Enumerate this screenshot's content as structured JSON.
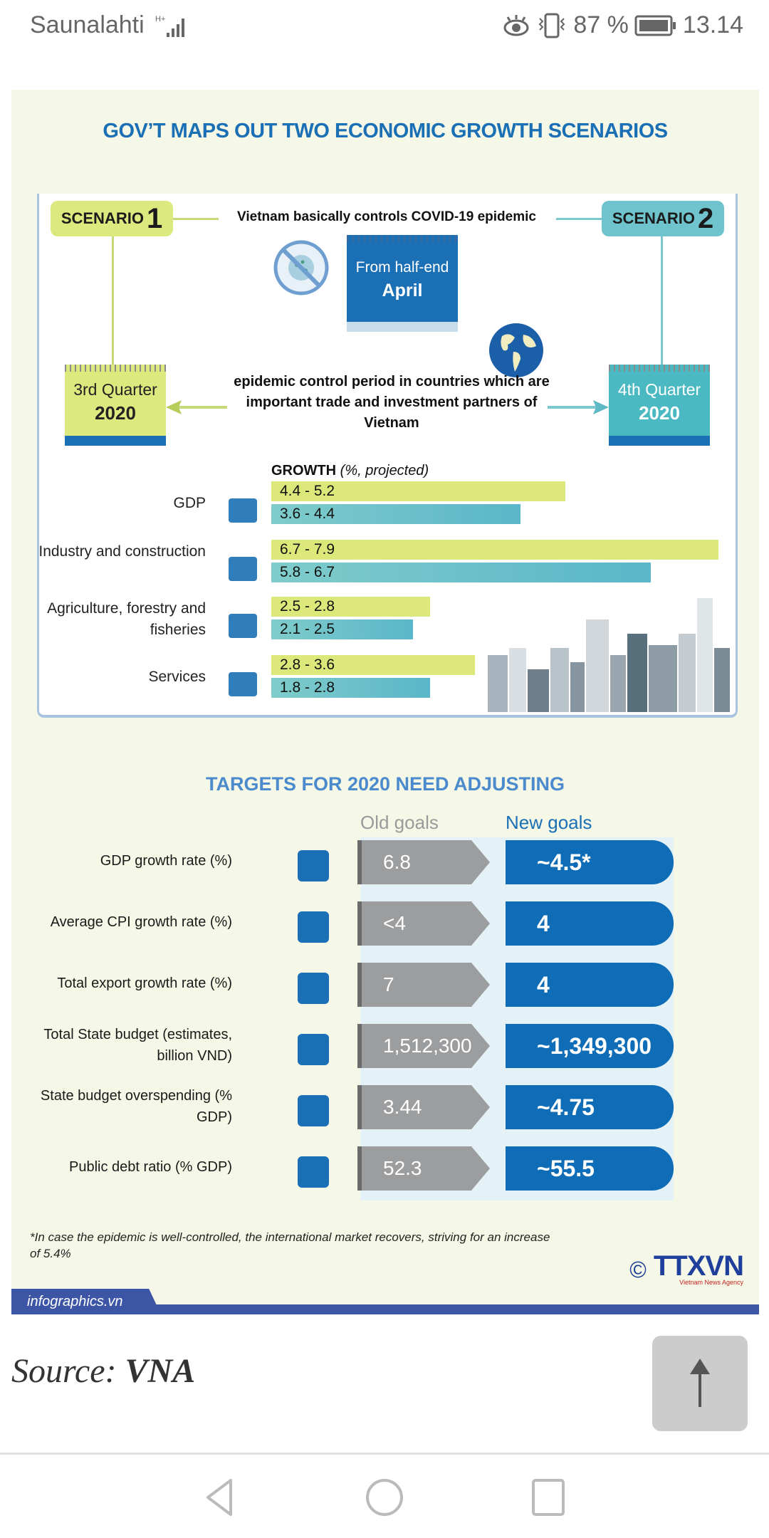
{
  "status_bar": {
    "carrier": "Saunalahti",
    "network_type": "H+",
    "battery_percent": "87 %",
    "time": "13.14",
    "icons": [
      "eye-icon",
      "vibrate-icon",
      "battery-icon",
      "signal-icon"
    ]
  },
  "infographic": {
    "title": "GOV’T MAPS OUT TWO ECONOMIC GROWTH SCENARIOS",
    "scenario1": {
      "prefix": "SCENARIO",
      "num": "1",
      "color": "#dce97e"
    },
    "scenario2": {
      "prefix": "SCENARIO",
      "num": "2",
      "color": "#6ec3cd"
    },
    "covid_text": "Vietnam basically controls COVID-19 epidemic",
    "april_calendar": {
      "line1": "From half-end",
      "line2": "April"
    },
    "q3_calendar": {
      "line1": "3rd Quarter",
      "line2": "2020"
    },
    "q4_calendar": {
      "line1": "4th Quarter",
      "line2": "2020"
    },
    "epidemic_text": "epidemic control period in countries which are important trade and investment partners of Vietnam",
    "growth_heading": "GROWTH",
    "growth_unit": "(%, projected)",
    "growth_rows": [
      {
        "label": "GDP",
        "icon": "gdp-icon",
        "s1": "4.4 - 5.2",
        "s2": "3.6 - 4.4"
      },
      {
        "label": "Industry and construction",
        "icon": "factory-icon",
        "s1": "6.7 - 7.9",
        "s2": "5.8 - 6.7"
      },
      {
        "label": "Agriculture, forestry and fisheries",
        "icon": "tree-icon",
        "s1": "2.5 - 2.8",
        "s2": "2.1 - 2.5"
      },
      {
        "label": "Services",
        "icon": "cloche-icon",
        "s1": "2.8 - 3.6",
        "s2": "1.8 - 2.8"
      }
    ],
    "targets_title": "TARGETS FOR 2020 NEED ADJUSTING",
    "old_goals_label": "Old goals",
    "new_goals_label": "New goals",
    "targets": [
      {
        "label": "GDP growth rate (%)",
        "icon": "gdp-icon",
        "old": "6.8",
        "new": "~4.5*"
      },
      {
        "label": "Average CPI growth rate (%)",
        "icon": "cpi-cart-icon",
        "old": "<4",
        "new": "4"
      },
      {
        "label": "Total export growth rate (%)",
        "icon": "container-icon",
        "old": "7",
        "new": "4"
      },
      {
        "label": "Total State budget (estimates, billion VND)",
        "icon": "coins-icon",
        "old": "1,512,300",
        "new": "~1,349,300"
      },
      {
        "label": "State budget overspending (% GDP)",
        "icon": "scale-icon",
        "old": "3.44",
        "new": "~4.75"
      },
      {
        "label": "Public debt ratio (% GDP)",
        "icon": "debt-person-icon",
        "old": "52.3",
        "new": "~55.5"
      }
    ],
    "footnote": "*In case the epidemic is well-controlled, the international market recovers, striving for an increase of 5.4%",
    "copyright": "©",
    "agency_logo": "TTXVN",
    "agency_sub": "Vietnam News Agency",
    "brand": "infographics.vn"
  },
  "chart_data": {
    "type": "bar",
    "title": "GROWTH (%, projected)",
    "categories": [
      "GDP",
      "Industry and construction",
      "Agriculture, forestry and fisheries",
      "Services"
    ],
    "series": [
      {
        "name": "Scenario 1",
        "ranges": [
          [
            4.4,
            5.2
          ],
          [
            6.7,
            7.9
          ],
          [
            2.5,
            2.8
          ],
          [
            2.8,
            3.6
          ]
        ]
      },
      {
        "name": "Scenario 2",
        "ranges": [
          [
            3.6,
            4.4
          ],
          [
            5.8,
            6.7
          ],
          [
            2.1,
            2.5
          ],
          [
            1.8,
            2.8
          ]
        ]
      }
    ]
  },
  "page": {
    "source_prefix": "Source:",
    "source_name": "VNA"
  },
  "nav": {
    "back": "back",
    "home": "home",
    "recents": "recents"
  }
}
